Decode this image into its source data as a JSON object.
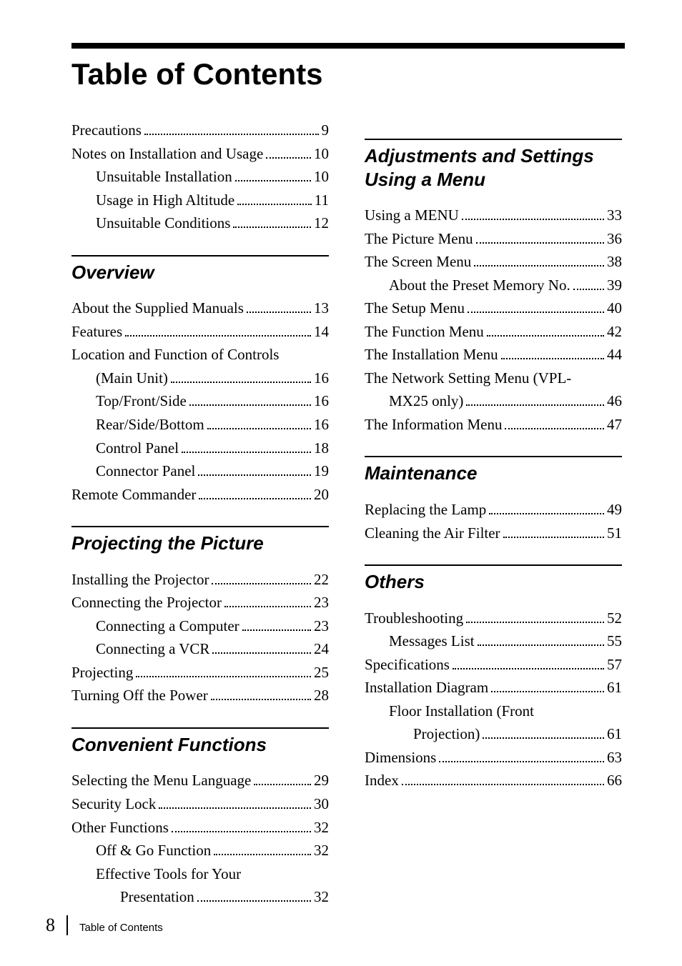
{
  "title": "Table of Contents",
  "footer": {
    "page": "8",
    "label": "Table of Contents"
  },
  "left": {
    "pre": [
      {
        "label": "Precautions",
        "page": "9",
        "indent": 0
      },
      {
        "label": "Notes on Installation and Usage",
        "page": "10",
        "indent": 0
      },
      {
        "label": "Unsuitable Installation",
        "page": "10",
        "indent": 1
      },
      {
        "label": "Usage in High Altitude",
        "page": "11",
        "indent": 1
      },
      {
        "label": "Unsuitable Conditions",
        "page": "12",
        "indent": 1
      }
    ],
    "sections": [
      {
        "heading": "Overview",
        "entries": [
          {
            "label": "About the Supplied Manuals",
            "page": "13",
            "indent": 0
          },
          {
            "label": "Features",
            "page": "14",
            "indent": 0
          },
          {
            "cont": "Location and Function of Controls",
            "indent": 0
          },
          {
            "label": "(Main Unit)",
            "page": "16",
            "indent": 1,
            "contIndent": true
          },
          {
            "label": "Top/Front/Side",
            "page": "16",
            "indent": 1
          },
          {
            "label": "Rear/Side/Bottom",
            "page": "16",
            "indent": 1
          },
          {
            "label": "Control Panel",
            "page": "18",
            "indent": 1
          },
          {
            "label": "Connector Panel",
            "page": "19",
            "indent": 1
          },
          {
            "label": "Remote Commander",
            "page": "20",
            "indent": 0
          }
        ]
      },
      {
        "heading": "Projecting the Picture",
        "entries": [
          {
            "label": "Installing the Projector",
            "page": "22",
            "indent": 0
          },
          {
            "label": "Connecting the Projector",
            "page": "23",
            "indent": 0
          },
          {
            "label": "Connecting a Computer",
            "page": "23",
            "indent": 1
          },
          {
            "label": "Connecting a VCR",
            "page": "24",
            "indent": 1
          },
          {
            "label": "Projecting",
            "page": "25",
            "indent": 0
          },
          {
            "label": "Turning Off the Power",
            "page": "28",
            "indent": 0
          }
        ]
      },
      {
        "heading": "Convenient Functions",
        "entries": [
          {
            "label": "Selecting the Menu Language",
            "page": "29",
            "indent": 0
          },
          {
            "label": "Security Lock",
            "page": "30",
            "indent": 0
          },
          {
            "label": "Other Functions",
            "page": "32",
            "indent": 0
          },
          {
            "label": "Off & Go Function",
            "page": "32",
            "indent": 1
          },
          {
            "cont": "Effective Tools for Your",
            "indent": 1
          },
          {
            "label": "Presentation",
            "page": "32",
            "indent": 2,
            "contIndent": true
          }
        ]
      }
    ]
  },
  "right": {
    "sections": [
      {
        "heading": "Adjustments and Settings Using a Menu",
        "entries": [
          {
            "label": "Using a MENU",
            "page": "33",
            "indent": 0
          },
          {
            "label": "The Picture Menu",
            "page": "36",
            "indent": 0
          },
          {
            "label": "The Screen Menu",
            "page": "38",
            "indent": 0
          },
          {
            "label": "About the Preset Memory No.",
            "page": "39",
            "indent": 1
          },
          {
            "label": "The Setup Menu",
            "page": "40",
            "indent": 0
          },
          {
            "label": "The Function Menu",
            "page": "42",
            "indent": 0
          },
          {
            "label": "The Installation Menu",
            "page": "44",
            "indent": 0
          },
          {
            "cont": "The Network Setting Menu (VPL-",
            "indent": 0
          },
          {
            "label": "MX25 only)",
            "page": "46",
            "indent": 1,
            "contIndent": true
          },
          {
            "label": "The Information Menu",
            "page": "47",
            "indent": 0
          }
        ]
      },
      {
        "heading": "Maintenance",
        "entries": [
          {
            "label": "Replacing the Lamp",
            "page": "49",
            "indent": 0
          },
          {
            "label": "Cleaning the Air Filter",
            "page": "51",
            "indent": 0
          }
        ]
      },
      {
        "heading": "Others",
        "entries": [
          {
            "label": "Troubleshooting",
            "page": "52",
            "indent": 0
          },
          {
            "label": "Messages List",
            "page": "55",
            "indent": 1
          },
          {
            "label": "Specifications",
            "page": "57",
            "indent": 0
          },
          {
            "label": "Installation Diagram",
            "page": "61",
            "indent": 0
          },
          {
            "cont": "Floor Installation (Front",
            "indent": 1
          },
          {
            "label": "Projection)",
            "page": "61",
            "indent": 2,
            "contIndent": true
          },
          {
            "label": "Dimensions",
            "page": "63",
            "indent": 0
          },
          {
            "label": "Index",
            "page": "66",
            "indent": 0
          }
        ]
      }
    ]
  }
}
